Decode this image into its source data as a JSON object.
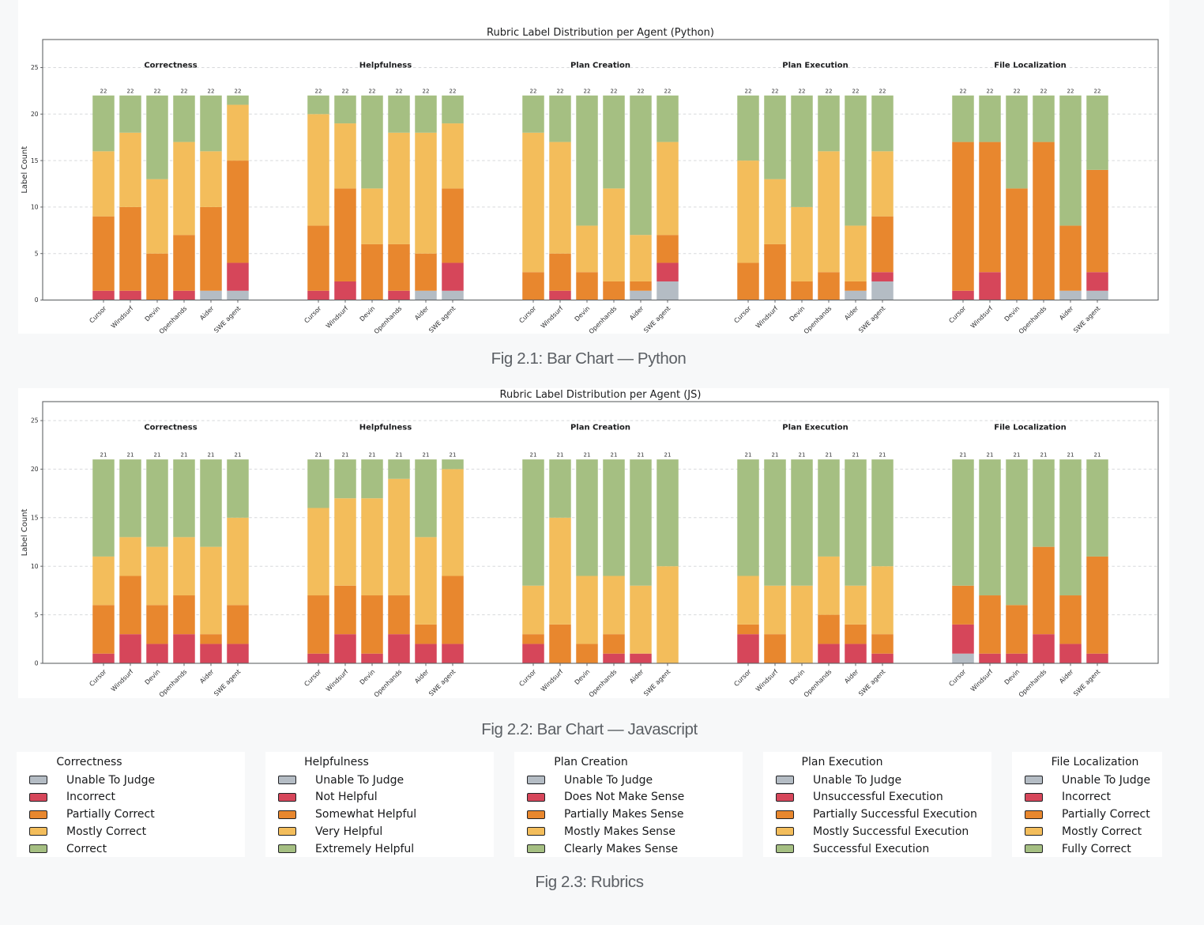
{
  "palette": {
    "unable": "#b4bcc4",
    "incorrect": "#d6465a",
    "partial": "#e8872e",
    "mostly": "#f3bd5b",
    "good": "#a5bf82"
  },
  "swatch_border": "#222326",
  "stack_order": [
    "unable",
    "incorrect",
    "partial",
    "mostly",
    "good"
  ],
  "chart_data": [
    {
      "id": "python",
      "type": "bar",
      "stacked": true,
      "title": "Rubric Label Distribution per Agent (Python)",
      "ylabel": "Label Count",
      "yticks": [
        0,
        5,
        10,
        15,
        20,
        25
      ],
      "ylim": [
        0,
        28
      ],
      "grid": true,
      "bar_total_label": "22",
      "categories": [
        "Cursor",
        "Windsurf",
        "Devin",
        "Openhands",
        "Aider",
        "SWE agent"
      ],
      "facets": [
        {
          "name": "Correctness",
          "values": [
            [
              0,
              1,
              8,
              7,
              6
            ],
            [
              0,
              1,
              9,
              8,
              4
            ],
            [
              0,
              0,
              5,
              8,
              9
            ],
            [
              0,
              1,
              6,
              10,
              5
            ],
            [
              1,
              0,
              9,
              6,
              6
            ],
            [
              1,
              3,
              11,
              6,
              1
            ]
          ]
        },
        {
          "name": "Helpfulness",
          "values": [
            [
              0,
              1,
              7,
              12,
              2
            ],
            [
              0,
              2,
              10,
              7,
              3
            ],
            [
              0,
              0,
              6,
              6,
              10
            ],
            [
              0,
              1,
              5,
              12,
              4
            ],
            [
              1,
              0,
              4,
              13,
              4
            ],
            [
              1,
              3,
              8,
              7,
              3
            ]
          ]
        },
        {
          "name": "Plan Creation",
          "values": [
            [
              0,
              0,
              3,
              15,
              4
            ],
            [
              0,
              1,
              4,
              12,
              5
            ],
            [
              0,
              0,
              3,
              5,
              14
            ],
            [
              0,
              0,
              2,
              10,
              10
            ],
            [
              1,
              0,
              1,
              5,
              15
            ],
            [
              2,
              2,
              3,
              10,
              5
            ]
          ]
        },
        {
          "name": "Plan Execution",
          "values": [
            [
              0,
              0,
              4,
              11,
              7
            ],
            [
              0,
              0,
              6,
              7,
              9
            ],
            [
              0,
              0,
              2,
              8,
              12
            ],
            [
              0,
              0,
              3,
              13,
              6
            ],
            [
              1,
              0,
              1,
              6,
              14
            ],
            [
              2,
              1,
              6,
              7,
              6
            ]
          ]
        },
        {
          "name": "File Localization",
          "values": [
            [
              0,
              1,
              16,
              0,
              5
            ],
            [
              0,
              3,
              14,
              0,
              5
            ],
            [
              0,
              0,
              12,
              0,
              10
            ],
            [
              0,
              0,
              17,
              0,
              5
            ],
            [
              1,
              0,
              7,
              0,
              14
            ],
            [
              1,
              2,
              11,
              0,
              8
            ]
          ]
        }
      ]
    },
    {
      "id": "js",
      "type": "bar",
      "stacked": true,
      "title": "Rubric Label Distribution per Agent (JS)",
      "ylabel": "Label Count",
      "yticks": [
        0,
        5,
        10,
        15,
        20,
        25
      ],
      "ylim": [
        0,
        27
      ],
      "grid": true,
      "bar_total_label": "21",
      "categories": [
        "Cursor",
        "Windsurf",
        "Devin",
        "Openhands",
        "Aider",
        "SWE agent"
      ],
      "facets": [
        {
          "name": "Correctness",
          "values": [
            [
              0,
              1,
              5,
              5,
              10
            ],
            [
              0,
              3,
              6,
              4,
              8
            ],
            [
              0,
              2,
              4,
              6,
              9
            ],
            [
              0,
              3,
              4,
              6,
              8
            ],
            [
              0,
              2,
              1,
              9,
              9
            ],
            [
              0,
              2,
              4,
              9,
              6
            ]
          ]
        },
        {
          "name": "Helpfulness",
          "values": [
            [
              0,
              1,
              6,
              9,
              5
            ],
            [
              0,
              3,
              5,
              9,
              4
            ],
            [
              0,
              1,
              6,
              10,
              4
            ],
            [
              0,
              3,
              4,
              12,
              2
            ],
            [
              0,
              2,
              2,
              9,
              8
            ],
            [
              0,
              2,
              7,
              11,
              1
            ]
          ]
        },
        {
          "name": "Plan Creation",
          "values": [
            [
              0,
              2,
              1,
              5,
              13
            ],
            [
              0,
              0,
              4,
              11,
              6
            ],
            [
              0,
              0,
              2,
              7,
              12
            ],
            [
              0,
              1,
              2,
              6,
              12
            ],
            [
              0,
              1,
              0,
              7,
              13
            ],
            [
              0,
              0,
              0,
              10,
              11
            ]
          ]
        },
        {
          "name": "Plan Execution",
          "values": [
            [
              0,
              3,
              1,
              5,
              12
            ],
            [
              0,
              0,
              3,
              5,
              13
            ],
            [
              0,
              0,
              0,
              8,
              13
            ],
            [
              0,
              2,
              3,
              6,
              10
            ],
            [
              0,
              2,
              2,
              4,
              13
            ],
            [
              0,
              1,
              2,
              7,
              11
            ]
          ]
        },
        {
          "name": "File Localization",
          "values": [
            [
              1,
              3,
              4,
              0,
              13
            ],
            [
              0,
              1,
              6,
              0,
              14
            ],
            [
              0,
              1,
              5,
              0,
              15
            ],
            [
              0,
              3,
              9,
              0,
              9
            ],
            [
              0,
              2,
              5,
              0,
              14
            ],
            [
              0,
              1,
              10,
              0,
              10
            ]
          ]
        }
      ]
    }
  ],
  "legend_groups": [
    {
      "title": "Correctness",
      "items": [
        {
          "key": "unable",
          "label": "Unable To Judge"
        },
        {
          "key": "incorrect",
          "label": "Incorrect"
        },
        {
          "key": "partial",
          "label": "Partially Correct"
        },
        {
          "key": "mostly",
          "label": "Mostly Correct"
        },
        {
          "key": "good",
          "label": "Correct"
        }
      ]
    },
    {
      "title": "Helpfulness",
      "items": [
        {
          "key": "unable",
          "label": "Unable To Judge"
        },
        {
          "key": "incorrect",
          "label": "Not Helpful"
        },
        {
          "key": "partial",
          "label": "Somewhat Helpful"
        },
        {
          "key": "mostly",
          "label": "Very Helpful"
        },
        {
          "key": "good",
          "label": "Extremely Helpful"
        }
      ]
    },
    {
      "title": "Plan Creation",
      "items": [
        {
          "key": "unable",
          "label": "Unable To Judge"
        },
        {
          "key": "incorrect",
          "label": "Does Not Make Sense"
        },
        {
          "key": "partial",
          "label": "Partially Makes Sense"
        },
        {
          "key": "mostly",
          "label": "Mostly Makes Sense"
        },
        {
          "key": "good",
          "label": "Clearly Makes Sense"
        }
      ]
    },
    {
      "title": "Plan Execution",
      "items": [
        {
          "key": "unable",
          "label": "Unable To Judge"
        },
        {
          "key": "incorrect",
          "label": "Unsuccessful Execution"
        },
        {
          "key": "partial",
          "label": "Partially Successful Execution"
        },
        {
          "key": "mostly",
          "label": "Mostly Successful Execution"
        },
        {
          "key": "good",
          "label": "Successful Execution"
        }
      ]
    },
    {
      "title": "File Localization",
      "items": [
        {
          "key": "unable",
          "label": "Unable To Judge"
        },
        {
          "key": "incorrect",
          "label": "Incorrect"
        },
        {
          "key": "partial",
          "label": "Partially Correct"
        },
        {
          "key": "mostly",
          "label": "Mostly Correct"
        },
        {
          "key": "good",
          "label": "Fully Correct"
        }
      ]
    }
  ],
  "captions": [
    "Fig 2.1: Bar Chart — Python",
    "Fig 2.2: Bar Chart — Javascript",
    "Fig 2.3: Rubrics"
  ]
}
